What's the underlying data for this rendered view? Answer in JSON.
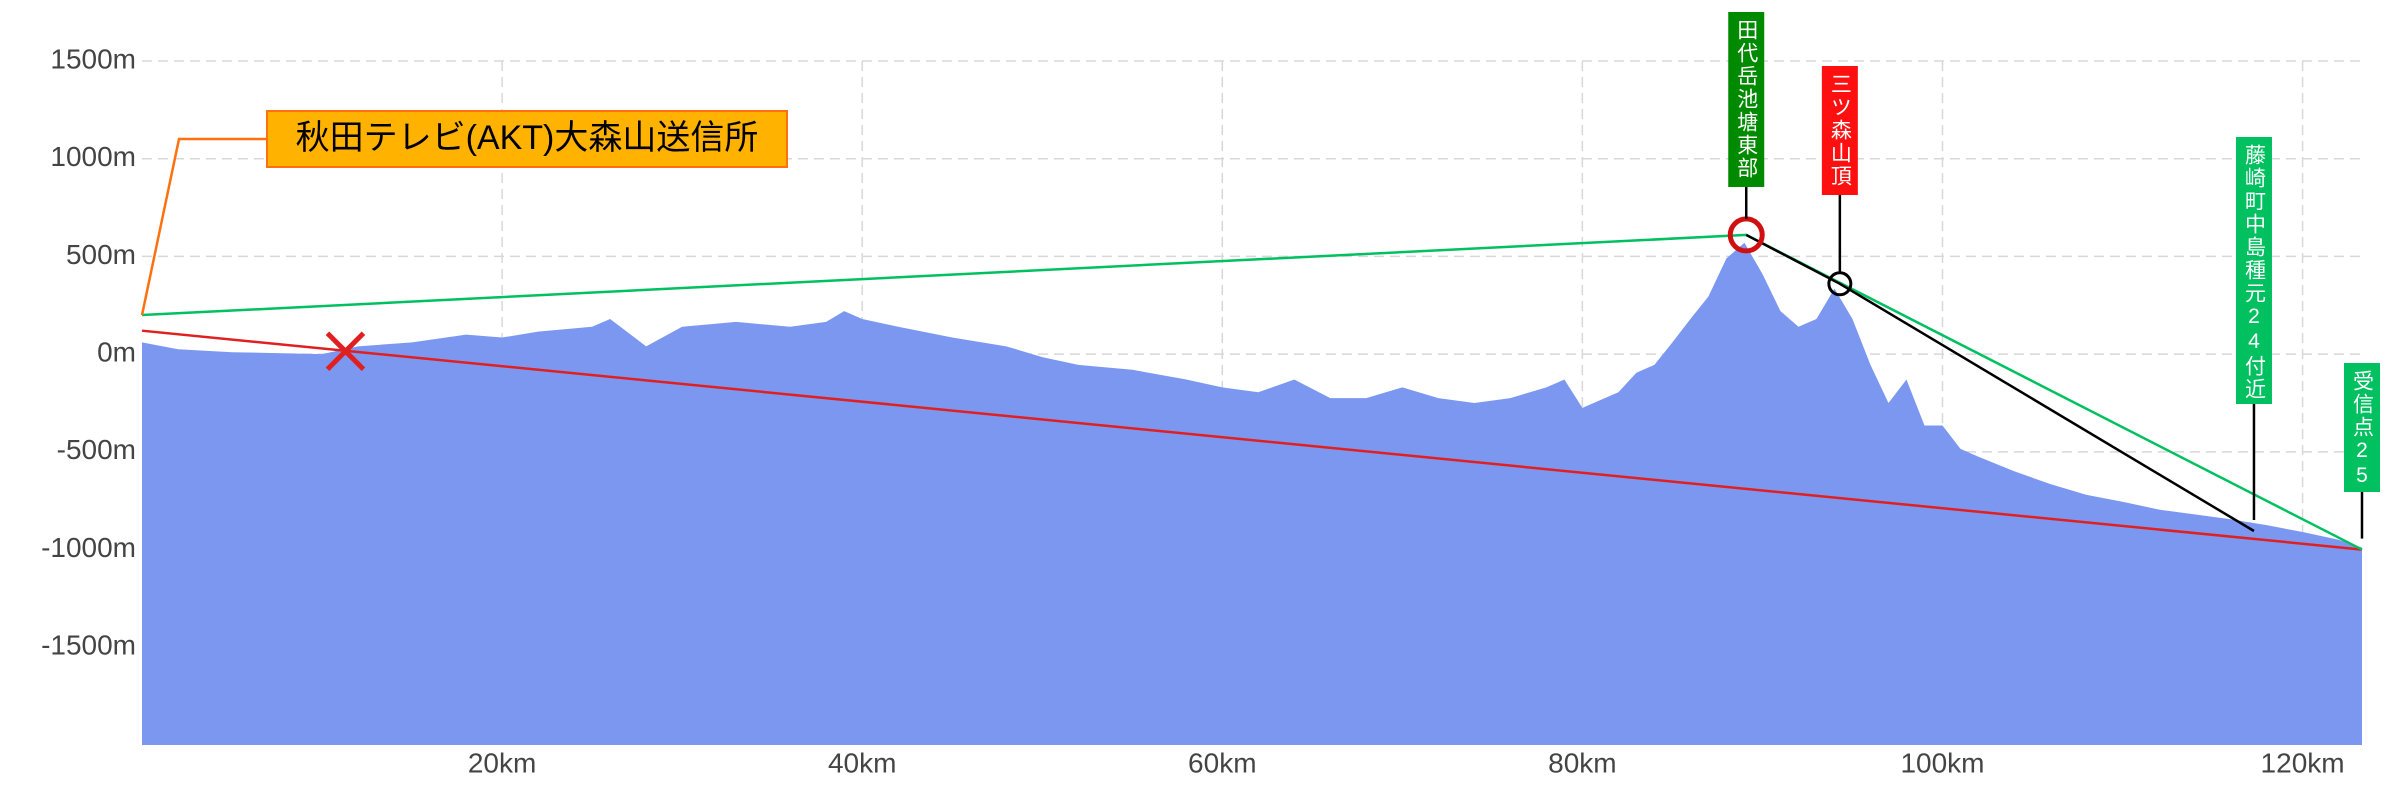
{
  "chart_data": {
    "type": "area",
    "x": [
      0,
      2,
      5,
      10,
      12,
      15,
      18,
      20,
      22,
      25,
      26,
      28,
      30,
      33,
      36,
      38,
      39,
      40,
      42,
      45,
      48,
      50,
      52,
      55,
      58,
      60,
      62,
      64,
      66,
      68,
      70,
      72,
      74,
      76,
      78,
      79,
      80,
      82,
      83,
      84,
      85,
      86,
      87,
      88,
      89,
      90,
      91,
      92,
      93,
      94,
      95,
      96,
      97,
      98,
      99,
      100,
      101,
      102,
      104,
      106,
      108,
      110,
      112,
      114,
      116,
      118,
      120,
      122,
      123.3
    ],
    "values": [
      60,
      25,
      10,
      0,
      40,
      60,
      100,
      85,
      115,
      140,
      180,
      40,
      140,
      165,
      140,
      165,
      220,
      180,
      140,
      85,
      40,
      -15,
      -55,
      -80,
      -130,
      -170,
      -195,
      -130,
      -225,
      -225,
      -170,
      -225,
      -250,
      -225,
      -170,
      -130,
      -275,
      -195,
      -95,
      -55,
      60,
      180,
      295,
      490,
      570,
      410,
      220,
      140,
      180,
      335,
      180,
      -55,
      -250,
      -130,
      -365,
      -365,
      -485,
      -525,
      -600,
      -665,
      -720,
      -755,
      -795,
      -820,
      -845,
      -875,
      -910,
      -950,
      -990
    ],
    "color": "#7b97f0",
    "xlim": [
      0,
      123.3
    ],
    "ylim": [
      -2000,
      1500
    ],
    "xticks": [
      {
        "value": 20,
        "label": "20km"
      },
      {
        "value": 40,
        "label": "40km"
      },
      {
        "value": 60,
        "label": "60km"
      },
      {
        "value": 80,
        "label": "80km"
      },
      {
        "value": 100,
        "label": "100km"
      },
      {
        "value": 120,
        "label": "120km"
      }
    ],
    "yticks": [
      {
        "value": 1500,
        "label": "1500m"
      },
      {
        "value": 1000,
        "label": "1000m"
      },
      {
        "value": 500,
        "label": "500m"
      },
      {
        "value": 0,
        "label": "0m"
      },
      {
        "value": -500,
        "label": "-500m"
      },
      {
        "value": -1000,
        "label": "-1000m"
      },
      {
        "value": -1500,
        "label": "-1500m"
      }
    ],
    "grid": true,
    "lines": [
      {
        "color": "#e02020",
        "x": [
          0,
          123.3
        ],
        "values": [
          120,
          -1000
        ]
      },
      {
        "color": "#00c060",
        "x": [
          0,
          89.1,
          123.3
        ],
        "values": [
          200,
          610,
          -1000
        ]
      },
      {
        "color": "#000000",
        "x": [
          89.1,
          94.3,
          117.3
        ],
        "values": [
          610,
          360,
          -905
        ]
      }
    ],
    "markers": [
      {
        "shape": "x",
        "color": "#e02020",
        "x": 11.3,
        "value": 15
      },
      {
        "shape": "circle",
        "color": "#d01010",
        "x": 89.1,
        "value": 610
      },
      {
        "shape": "circle",
        "color": "#000000",
        "x": 94.3,
        "value": 360
      }
    ],
    "annotations": [
      {
        "text": "秋田テレビ(AKT)大森山送信所",
        "color": "#ffb300",
        "x": 0,
        "value": 200
      },
      {
        "text": "田代岳池塘東部",
        "color": "#008a00",
        "x": 89.1,
        "value": 610
      },
      {
        "text": "三ツ森山頂",
        "color": "#ff1010",
        "x": 94.3,
        "value": 360
      },
      {
        "text": "藤崎町中島種元24付近",
        "color": "#00c060",
        "x": 117.3,
        "value": -905
      },
      {
        "text": "受信点25",
        "color": "#00c060",
        "x": 123.3,
        "value": -1000
      }
    ]
  }
}
